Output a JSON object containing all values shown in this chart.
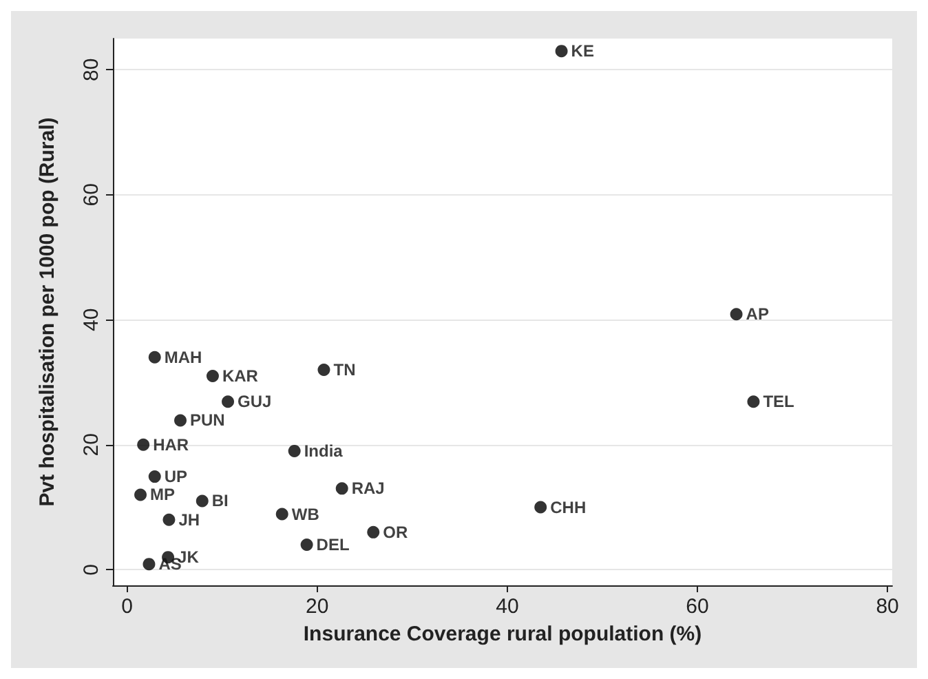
{
  "chart_data": {
    "type": "scatter",
    "xlabel": "Insurance Coverage rural population (%)",
    "ylabel": "Pvt hospitalisation per 1000 pop (Rural)",
    "x": [
      45.7,
      64.1,
      65.9,
      43.5,
      2.9,
      9.0,
      20.7,
      10.6,
      5.6,
      1.7,
      17.6,
      2.9,
      1.4,
      7.9,
      22.6,
      16.3,
      4.4,
      25.9,
      18.9,
      4.3,
      2.3
    ],
    "series": [
      {
        "color": "#000000",
        "values": [
          83.0,
          40.9,
          26.9,
          10.0,
          34.0,
          31.0,
          32.0,
          26.9,
          23.9,
          20.0,
          19.0,
          14.9,
          12.0,
          11.0,
          13.0,
          8.9,
          8.0,
          6.0,
          4.0,
          2.0,
          0.9
        ]
      }
    ],
    "annotations": [
      {
        "text": "KE",
        "x": 45.7,
        "y": 83.0
      },
      {
        "text": "AP",
        "x": 64.1,
        "y": 40.9
      },
      {
        "text": "TEL",
        "x": 65.9,
        "y": 26.9
      },
      {
        "text": "CHH",
        "x": 43.5,
        "y": 10.0
      },
      {
        "text": "MAH",
        "x": 2.9,
        "y": 34.0
      },
      {
        "text": "KAR",
        "x": 9.0,
        "y": 31.0
      },
      {
        "text": "TN",
        "x": 20.7,
        "y": 32.0
      },
      {
        "text": "GUJ",
        "x": 10.6,
        "y": 26.9
      },
      {
        "text": "PUN",
        "x": 5.6,
        "y": 23.9
      },
      {
        "text": "HAR",
        "x": 1.7,
        "y": 20.0
      },
      {
        "text": "India",
        "x": 17.6,
        "y": 19.0
      },
      {
        "text": "UP",
        "x": 2.9,
        "y": 14.9
      },
      {
        "text": "MP",
        "x": 1.4,
        "y": 12.0
      },
      {
        "text": "BI",
        "x": 7.9,
        "y": 11.0
      },
      {
        "text": "RAJ",
        "x": 22.6,
        "y": 13.0
      },
      {
        "text": "WB",
        "x": 16.3,
        "y": 8.9
      },
      {
        "text": "JH",
        "x": 4.4,
        "y": 8.0
      },
      {
        "text": "OR",
        "x": 25.9,
        "y": 6.0
      },
      {
        "text": "DEL",
        "x": 18.9,
        "y": 4.0
      },
      {
        "text": "JK",
        "x": 4.3,
        "y": 2.0
      },
      {
        "text": "AS",
        "x": 2.3,
        "y": 0.9
      }
    ],
    "xlim": [
      -1.5,
      80.5
    ],
    "ylim": [
      -2.5,
      85
    ],
    "xticks": [
      0,
      20,
      40,
      60,
      80
    ],
    "yticks": [
      0,
      20,
      40,
      60,
      80
    ],
    "grid": "y",
    "marker": "circle"
  }
}
